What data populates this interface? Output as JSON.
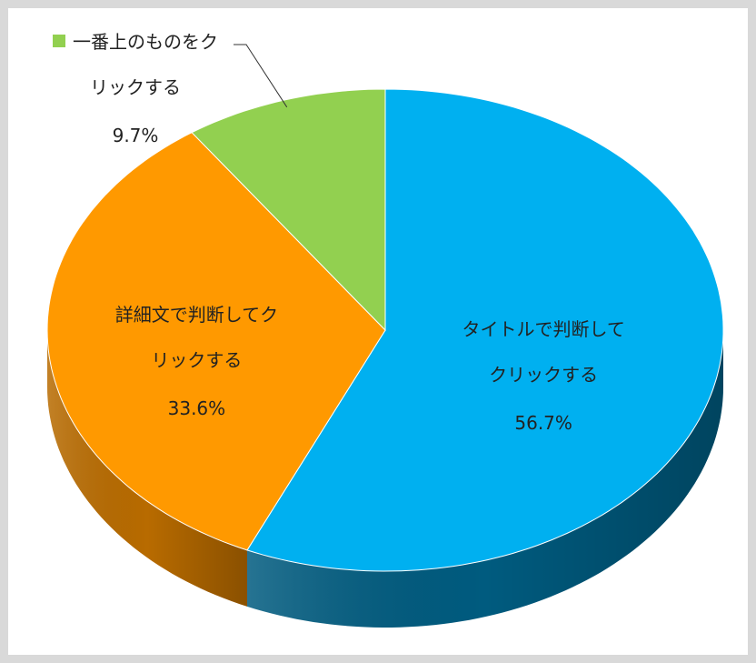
{
  "chart_data": {
    "type": "pie3d",
    "categories": [
      "タイトルで判断してクリックする",
      "詳細文で判断してクリックする",
      "一番上のものをクリックする"
    ],
    "values": [
      56.7,
      33.6,
      9.7
    ],
    "value_labels": [
      "56.7%",
      "33.6%",
      "9.7%"
    ],
    "colors": [
      "#00b0f0",
      "#ff9900",
      "#92d050"
    ],
    "side_colors": [
      "#005b7f",
      "#b86b00",
      "#5f8f2a"
    ],
    "start_angle": 0,
    "direction": "clockwise"
  }
}
